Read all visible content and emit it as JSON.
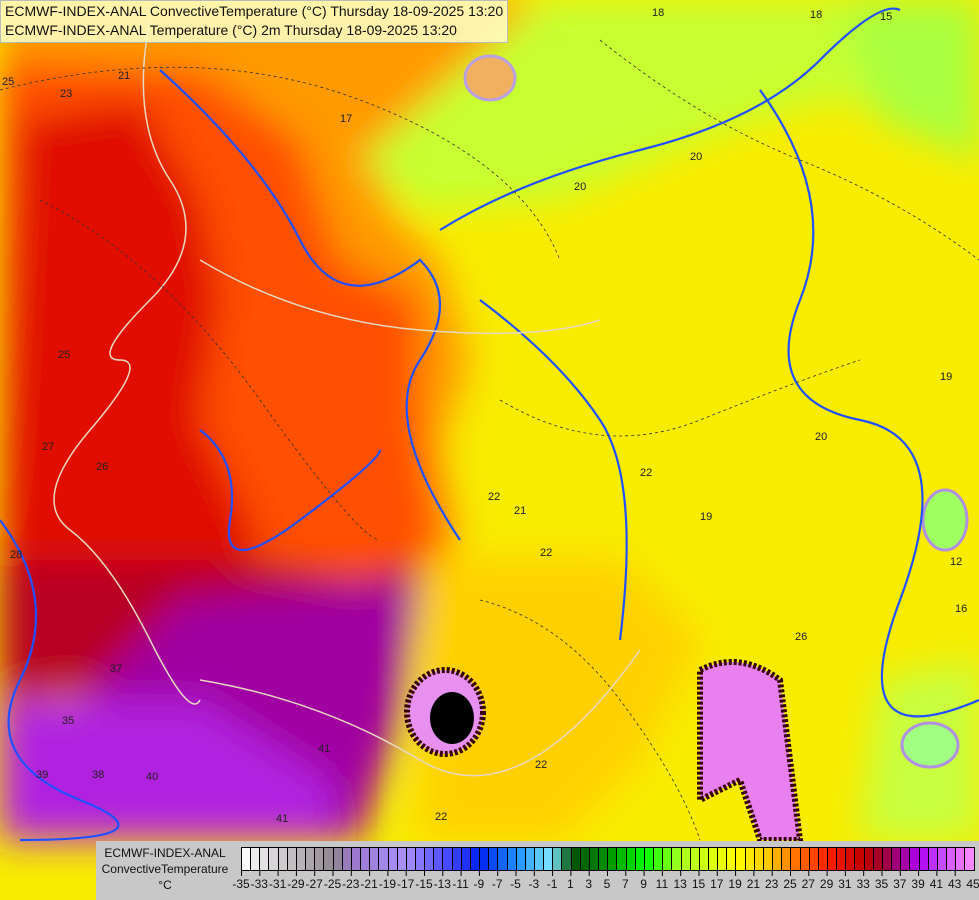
{
  "header": {
    "line1": "ECMWF-INDEX-ANAL ConvectiveTemperature (°C) Thursday 18-09-2025 13:20",
    "line2": "ECMWF-INDEX-ANAL Temperature (°C) 2m Thursday 18-09-2025 13:20"
  },
  "legend": {
    "model": "ECMWF-INDEX-ANAL",
    "parameter": "ConvectiveTemperature",
    "unit": "°C",
    "min": -35,
    "max": 45,
    "labels": [
      "-35",
      "-33",
      "-31",
      "-29",
      "-27",
      "-25",
      "-23",
      "-21",
      "-19",
      "-17",
      "-15",
      "-13",
      "-11",
      "-9",
      "-7",
      "-5",
      "-3",
      "-1",
      "1",
      "3",
      "5",
      "7",
      "9",
      "11",
      "13",
      "15",
      "17",
      "19",
      "21",
      "23",
      "25",
      "27",
      "29",
      "31",
      "33",
      "35",
      "37",
      "39",
      "41",
      "43",
      "45"
    ],
    "color_stops": [
      {
        "value": -35,
        "color": "#ffffff"
      },
      {
        "value": -25,
        "color": "#908890"
      },
      {
        "value": -23,
        "color": "#9a78c8"
      },
      {
        "value": -17,
        "color": "#a890ff"
      },
      {
        "value": -13,
        "color": "#5050ff"
      },
      {
        "value": -9,
        "color": "#0020f0"
      },
      {
        "value": -5,
        "color": "#2090ff"
      },
      {
        "value": -1,
        "color": "#80e8ff"
      },
      {
        "value": 1,
        "color": "#005000"
      },
      {
        "value": 5,
        "color": "#009000"
      },
      {
        "value": 9,
        "color": "#00ff00"
      },
      {
        "value": 13,
        "color": "#a8ff20"
      },
      {
        "value": 19,
        "color": "#ffff00"
      },
      {
        "value": 23,
        "color": "#ffc000"
      },
      {
        "value": 25,
        "color": "#ff8000"
      },
      {
        "value": 29,
        "color": "#ff2000"
      },
      {
        "value": 33,
        "color": "#c00000"
      },
      {
        "value": 35,
        "color": "#a00030"
      },
      {
        "value": 37,
        "color": "#a00090"
      },
      {
        "value": 39,
        "color": "#b000f0"
      },
      {
        "value": 41,
        "color": "#c040ff"
      },
      {
        "value": 45,
        "color": "#ff90ff"
      }
    ]
  },
  "map": {
    "contour_labels": [
      "21",
      "23",
      "25",
      "25",
      "27",
      "26",
      "28",
      "37",
      "35",
      "39",
      "40",
      "41",
      "41",
      "38",
      "18",
      "17",
      "19",
      "20",
      "20",
      "20",
      "22",
      "22",
      "22",
      "21",
      "22",
      "22",
      "19",
      "15",
      "18",
      "12",
      "16",
      "26"
    ]
  }
}
